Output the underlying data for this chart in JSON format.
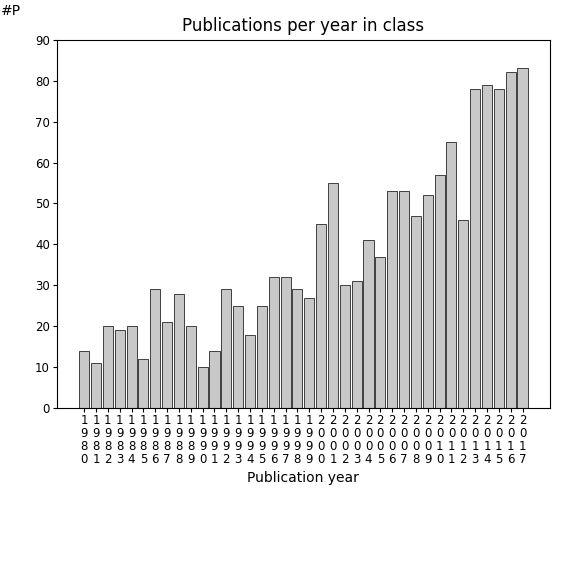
{
  "title": "Publications per year in class",
  "xlabel": "Publication year",
  "ylabel": "#P",
  "years": [
    1980,
    1981,
    1982,
    1983,
    1984,
    1985,
    1986,
    1987,
    1988,
    1989,
    1990,
    1991,
    1992,
    1993,
    1994,
    1995,
    1996,
    1997,
    1998,
    1999,
    2000,
    2001,
    2002,
    2003,
    2004,
    2005,
    2006,
    2007,
    2008,
    2009,
    2010,
    2011,
    2012,
    2013,
    2014,
    2015,
    2016,
    2017
  ],
  "values": [
    14,
    11,
    20,
    19,
    20,
    12,
    29,
    21,
    28,
    20,
    10,
    14,
    29,
    25,
    18,
    25,
    32,
    32,
    29,
    27,
    45,
    55,
    30,
    31,
    41,
    37,
    53,
    53,
    47,
    52,
    57,
    65,
    46,
    78,
    79,
    78,
    82,
    83
  ],
  "bar_color": "#c8c8c8",
  "bar_edgecolor": "#000000",
  "ylim": [
    0,
    90
  ],
  "yticks": [
    0,
    10,
    20,
    30,
    40,
    50,
    60,
    70,
    80,
    90
  ],
  "bg_color": "#ffffff",
  "title_fontsize": 12,
  "axis_fontsize": 10,
  "tick_fontsize": 8.5
}
